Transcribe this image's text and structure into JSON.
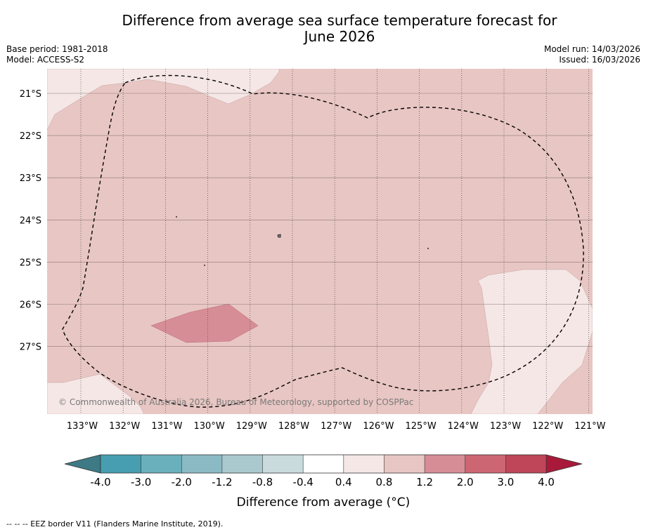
{
  "title": {
    "line1": "Difference from average sea surface temperature forecast for",
    "line2": "June 2026"
  },
  "meta": {
    "base_period": "Base period: 1981-2018",
    "model": "Model: ACCESS-S2",
    "model_run": "Model run: 14/03/2026",
    "issued": "Issued: 16/03/2026"
  },
  "map": {
    "lat_labels": [
      "21°S",
      "22°S",
      "23°S",
      "24°S",
      "25°S",
      "26°S",
      "27°S"
    ],
    "lon_labels": [
      "133°W",
      "132°W",
      "131°W",
      "130°W",
      "129°W",
      "128°W",
      "127°W",
      "126°W",
      "125°W",
      "124°W",
      "123°W",
      "122°W",
      "121°W"
    ],
    "copyright": "© Commonwealth of Australia 2026, Bureau of Meteorology, supported by COSPPac",
    "colors": {
      "c_0p4_0p8": "#f5e7e6",
      "c_0p8_1p2": "#e8c6c3",
      "c_1p2_2p0": "#d78d96"
    }
  },
  "colorbar": {
    "ticks": [
      "-4.0",
      "-3.0",
      "-2.0",
      "-1.2",
      "-0.8",
      "-0.4",
      "0.4",
      "0.8",
      "1.2",
      "2.0",
      "3.0",
      "4.0"
    ],
    "under_color": "#3d7a86",
    "over_color": "#a91a3a",
    "colors": [
      "#479eb0",
      "#6aafbc",
      "#8bbac5",
      "#a9c9cf",
      "#cadbde",
      "#ffffff",
      "#f5e7e6",
      "#e8c6c3",
      "#d78d96",
      "#cc6673",
      "#bf4658"
    ],
    "label": "Difference from average (°C)"
  },
  "footnote": "--  --  -- EEZ border V11 (Flanders Marine Institute, 2019)."
}
